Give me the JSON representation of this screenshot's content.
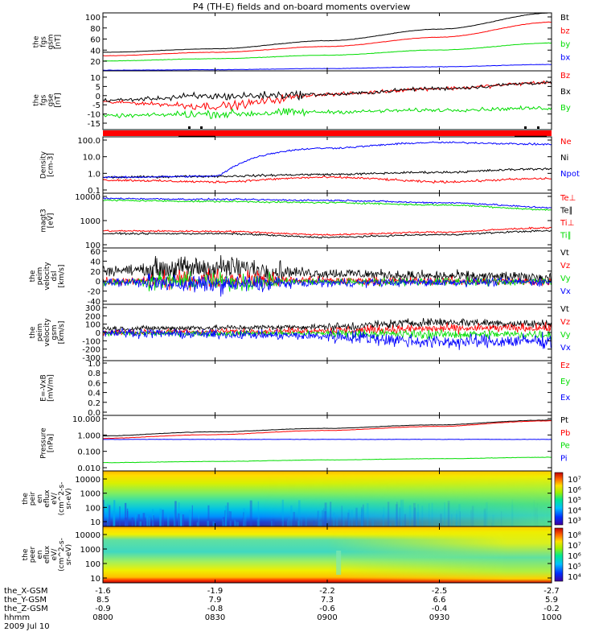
{
  "title": "P4 (TH-E) fields and on-board moments overview",
  "colors": {
    "black": "#000000",
    "red": "#ff0000",
    "green": "#00dd00",
    "blue": "#0000ff"
  },
  "panels": [
    {
      "ylabel": [
        "the",
        "fgs",
        "gsm",
        "[nT]"
      ],
      "ticks": [
        "100",
        "80",
        "60",
        "40",
        "20"
      ],
      "legend": [
        {
          "text": "Bt",
          "color": "black"
        },
        {
          "text": "bz",
          "color": "red"
        },
        {
          "text": "by",
          "color": "green"
        },
        {
          "text": "bx",
          "color": "blue"
        }
      ]
    },
    {
      "ylabel": [
        "the",
        "fgs",
        "gse",
        "[nT]"
      ],
      "ticks": [
        "10",
        "5",
        "0",
        "-5",
        "-10",
        "-15"
      ],
      "legend": [
        {
          "text": "Bz",
          "color": "red"
        },
        {
          "text": "Bx",
          "color": "black"
        },
        {
          "text": "By",
          "color": "green"
        }
      ]
    },
    {
      "ylabel": [
        "Density",
        "[cm-3]"
      ],
      "ticks": [
        "100.0",
        "10.0",
        "1.0",
        "0.1"
      ],
      "legend": [
        {
          "text": "Ne",
          "color": "red"
        },
        {
          "text": "Ni",
          "color": "black"
        },
        {
          "text": "Npot",
          "color": "blue"
        }
      ]
    },
    {
      "ylabel": [
        "magt3",
        "[eV]"
      ],
      "ticks": [
        "10000",
        "1000",
        "100"
      ],
      "legend": [
        {
          "text": "Te⊥",
          "color": "red"
        },
        {
          "text": "Te∥",
          "color": "black"
        },
        {
          "text": "Ti⊥",
          "color": "red"
        },
        {
          "text": "Ti∥",
          "color": "green"
        }
      ]
    },
    {
      "ylabel": [
        "the",
        "peim",
        "velocity",
        "dsl",
        "[km/s]"
      ],
      "ticks": [
        "60",
        "40",
        "20",
        "0",
        "-20",
        "-40"
      ],
      "legend": [
        {
          "text": "Vt",
          "color": "black"
        },
        {
          "text": "Vz",
          "color": "red"
        },
        {
          "text": "Vy",
          "color": "green"
        },
        {
          "text": "Vx",
          "color": "blue"
        }
      ]
    },
    {
      "ylabel": [
        "the",
        "peim",
        "velocity",
        "gsm",
        "[km/s]"
      ],
      "ticks": [
        "300",
        "200",
        "100",
        "0",
        "-100",
        "-200",
        "-300"
      ],
      "legend": [
        {
          "text": "Vt",
          "color": "black"
        },
        {
          "text": "Vz",
          "color": "red"
        },
        {
          "text": "Vy",
          "color": "green"
        },
        {
          "text": "Vx",
          "color": "blue"
        }
      ]
    },
    {
      "ylabel": [
        "E=-VxB",
        "[mV/m]"
      ],
      "ticks": [
        "1.0",
        "0.8",
        "0.6",
        "0.4",
        "0.2",
        "0.0"
      ],
      "legend": [
        {
          "text": "Ez",
          "color": "red"
        },
        {
          "text": "Ey",
          "color": "green"
        },
        {
          "text": "Ex",
          "color": "blue"
        }
      ]
    },
    {
      "ylabel": [
        "Pressure",
        "[nPa]"
      ],
      "ticks": [
        "10.000",
        "1.000",
        "0.100",
        "0.010"
      ],
      "legend": [
        {
          "text": "Pt",
          "color": "black"
        },
        {
          "text": "Pb",
          "color": "red"
        },
        {
          "text": "Pe",
          "color": "green"
        },
        {
          "text": "Pi",
          "color": "blue"
        }
      ]
    },
    {
      "ylabel": [
        "the",
        "peir",
        "en",
        "eflux",
        "eV/",
        "(cm^2-s-",
        "sr-eV)"
      ],
      "ticks": [
        "10000",
        "1000",
        "100",
        "10"
      ],
      "colorbar": [
        "10⁷",
        "10⁶",
        "10⁵",
        "10⁴",
        "10³"
      ]
    },
    {
      "ylabel": [
        "the",
        "peer",
        "en",
        "eflux",
        "eV/",
        "(cm^2-s-",
        "sr-eV)"
      ],
      "ticks": [
        "10000",
        "1000",
        "100",
        "10"
      ],
      "colorbar": [
        "10⁸",
        "10⁷",
        "10⁶",
        "10⁵",
        "10⁴"
      ]
    }
  ],
  "xaxis": {
    "rows": [
      {
        "label": "the_X-GSM",
        "values": [
          "-1.6",
          "-1.9",
          "-2.2",
          "-2.5",
          "-2.7"
        ]
      },
      {
        "label": "the_Y-GSM",
        "values": [
          "8.5",
          "7.9",
          "7.3",
          "6.6",
          "5.9"
        ]
      },
      {
        "label": "the_Z-GSM",
        "values": [
          "-0.9",
          "-0.8",
          "-0.6",
          "-0.4",
          "-0.2"
        ]
      },
      {
        "label": "hhmm",
        "values": [
          "0800",
          "0830",
          "0900",
          "0930",
          "1000"
        ]
      }
    ],
    "date": "2009 Jul 10"
  },
  "chart_data": [
    {
      "type": "line",
      "title": "P4 (TH-E) fields and on-board moments overview",
      "ylabel": "the fgs gsm [nT]",
      "ylim": [
        0,
        100
      ],
      "x": [
        "0800",
        "0830",
        "0900",
        "0930",
        "1000"
      ],
      "series": [
        {
          "name": "Bt",
          "values": [
            32,
            38,
            52,
            72,
            100
          ]
        },
        {
          "name": "bz",
          "values": [
            26,
            32,
            42,
            58,
            84
          ]
        },
        {
          "name": "by",
          "values": [
            17,
            21,
            27,
            36,
            48
          ]
        },
        {
          "name": "bx",
          "values": [
            1,
            2,
            4,
            7,
            11
          ]
        }
      ]
    },
    {
      "type": "line",
      "ylabel": "the fgs gse [nT]",
      "ylim": [
        -18,
        12
      ],
      "x": [
        "0800",
        "0830",
        "0900",
        "0930",
        "1000"
      ],
      "series": [
        {
          "name": "Bz",
          "values": [
            -4,
            -6,
            0,
            3,
            6
          ]
        },
        {
          "name": "Bx",
          "values": [
            -3,
            -1,
            0,
            3,
            6
          ]
        },
        {
          "name": "By",
          "values": [
            -11,
            -10,
            -9,
            -8,
            -7
          ]
        }
      ]
    },
    {
      "type": "line",
      "ylabel": "Density [cm-3]",
      "ylim": [
        0.1,
        100
      ],
      "yscale": "log",
      "x": [
        "0800",
        "0830",
        "0900",
        "0930",
        "1000"
      ],
      "series": [
        {
          "name": "Ne",
          "values": [
            0.5,
            0.4,
            0.7,
            0.4,
            0.6
          ]
        },
        {
          "name": "Ni",
          "values": [
            0.7,
            0.8,
            1.0,
            1.3,
            2.0
          ]
        },
        {
          "name": "Npot",
          "values": [
            0.7,
            0.8,
            25,
            50,
            40
          ]
        }
      ]
    },
    {
      "type": "line",
      "ylabel": "magt3 [eV]",
      "ylim": [
        50,
        10000
      ],
      "yscale": "log",
      "x": [
        "0800",
        "0830",
        "0900",
        "0930",
        "1000"
      ],
      "series": [
        {
          "name": "Te⊥",
          "values": [
            260,
            250,
            180,
            230,
            350
          ]
        },
        {
          "name": "Te∥",
          "values": [
            200,
            200,
            140,
            180,
            260
          ]
        },
        {
          "name": "Ti⊥",
          "values": [
            6000,
            5500,
            5000,
            4000,
            2500
          ]
        },
        {
          "name": "Ti∥",
          "values": [
            5000,
            4500,
            4000,
            3200,
            2000
          ]
        }
      ]
    },
    {
      "type": "line",
      "ylabel": "the peim velocity dsl [km/s]",
      "ylim": [
        -40,
        60
      ],
      "x": [
        "0800",
        "0830",
        "0900",
        "0930",
        "1000"
      ],
      "series": [
        {
          "name": "Vt",
          "values": [
            20,
            25,
            15,
            10,
            8
          ]
        },
        {
          "name": "Vz",
          "values": [
            0,
            5,
            2,
            1,
            0
          ]
        },
        {
          "name": "Vy",
          "values": [
            0,
            0,
            0,
            0,
            0
          ]
        },
        {
          "name": "Vx",
          "values": [
            0,
            -5,
            -2,
            -1,
            0
          ]
        }
      ]
    },
    {
      "type": "line",
      "ylabel": "the peim velocity gsm [km/s]",
      "ylim": [
        -300,
        300
      ],
      "x": [
        "0800",
        "0830",
        "0900",
        "0930",
        "1000"
      ],
      "series": [
        {
          "name": "Vt",
          "values": [
            40,
            50,
            60,
            110,
            90
          ]
        },
        {
          "name": "Vz",
          "values": [
            0,
            10,
            20,
            40,
            50
          ]
        },
        {
          "name": "Vy",
          "values": [
            -10,
            -10,
            -10,
            -20,
            -20
          ]
        },
        {
          "name": "Vx",
          "values": [
            0,
            -20,
            -40,
            -100,
            -90
          ]
        }
      ]
    },
    {
      "type": "line",
      "ylabel": "E=-VxB [mV/m]",
      "ylim": [
        0,
        1
      ],
      "series": [
        {
          "name": "Ez",
          "values": []
        },
        {
          "name": "Ey",
          "values": []
        },
        {
          "name": "Ex",
          "values": []
        }
      ]
    },
    {
      "type": "line",
      "ylabel": "Pressure [nPa]",
      "ylim": [
        0.003,
        10
      ],
      "yscale": "log",
      "x": [
        "0800",
        "0830",
        "0900",
        "0930",
        "1000"
      ],
      "series": [
        {
          "name": "Pt",
          "values": [
            0.5,
            0.9,
            1.5,
            2.5,
            5
          ]
        },
        {
          "name": "Pb",
          "values": [
            0.35,
            0.6,
            1.1,
            2.0,
            4.5
          ]
        },
        {
          "name": "Pe",
          "values": [
            0.01,
            0.012,
            0.015,
            0.018,
            0.022
          ]
        },
        {
          "name": "Pi",
          "values": [
            0.3,
            0.3,
            0.3,
            0.3,
            0.3
          ]
        }
      ]
    },
    {
      "type": "heatmap",
      "ylabel": "the peir en eflux eV/(cm^2-s-sr-eV)",
      "ylim": [
        8,
        25000
      ],
      "yscale": "log",
      "colorbar": [
        "10³",
        "10⁴",
        "10⁵",
        "10⁶",
        "10⁷"
      ]
    },
    {
      "type": "heatmap",
      "ylabel": "the peer en eflux eV/(cm^2-s-sr-eV)",
      "ylim": [
        8,
        25000
      ],
      "yscale": "log",
      "colorbar": [
        "10⁴",
        "10⁵",
        "10⁶",
        "10⁷",
        "10⁸"
      ]
    }
  ]
}
